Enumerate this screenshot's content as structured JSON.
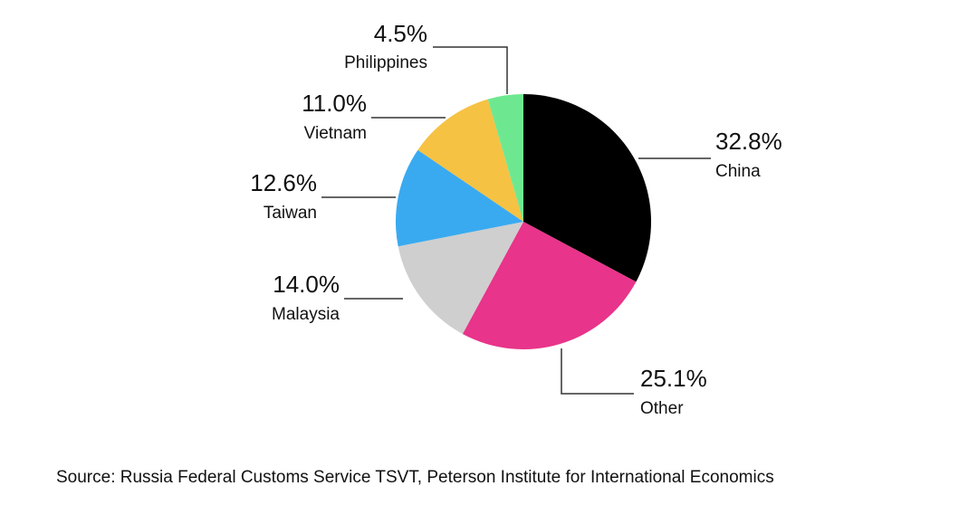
{
  "chart_data": {
    "type": "pie",
    "categories": [
      "China",
      "Other",
      "Malaysia",
      "Taiwan",
      "Vietnam",
      "Philippines"
    ],
    "values": [
      32.8,
      25.1,
      14.0,
      12.6,
      11.0,
      4.5
    ],
    "value_labels": [
      "32.8%",
      "25.1%",
      "14.0%",
      "12.6%",
      "11.0%",
      "4.5%"
    ],
    "colors": [
      "#000000",
      "#e8348a",
      "#cfcfcf",
      "#3aaaf0",
      "#f5c243",
      "#6ee890"
    ],
    "source": "Source: Russia Federal Customs Service TSVT, Peterson Institute for International Economics"
  }
}
